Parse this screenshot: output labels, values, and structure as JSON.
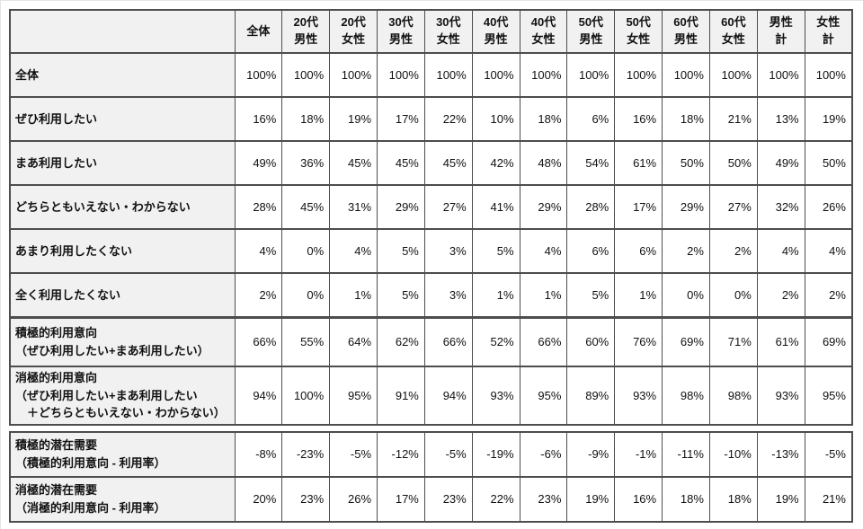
{
  "colors": {
    "table_border": "#4d4d4d",
    "header_bg": "#f1f1f1",
    "label_bg": "#f1f1f1",
    "cell_bg": "#ffffff",
    "text": "#111111"
  },
  "chart_data": {
    "type": "table",
    "title": "",
    "column_headers": [
      "",
      "全体",
      "20代\n男性",
      "20代\n女性",
      "30代\n男性",
      "30代\n女性",
      "40代\n男性",
      "40代\n女性",
      "50代\n男性",
      "50代\n女性",
      "60代\n男性",
      "60代\n女性",
      "男性\n計",
      "女性\n計"
    ],
    "body_rows": [
      {
        "label": "全体",
        "values": [
          "100%",
          "100%",
          "100%",
          "100%",
          "100%",
          "100%",
          "100%",
          "100%",
          "100%",
          "100%",
          "100%",
          "100%",
          "100%"
        ]
      },
      {
        "label": "ぜひ利用したい",
        "values": [
          "16%",
          "18%",
          "19%",
          "17%",
          "22%",
          "10%",
          "18%",
          "6%",
          "16%",
          "18%",
          "21%",
          "13%",
          "19%"
        ]
      },
      {
        "label": "まあ利用したい",
        "values": [
          "49%",
          "36%",
          "45%",
          "45%",
          "45%",
          "42%",
          "48%",
          "54%",
          "61%",
          "50%",
          "50%",
          "49%",
          "50%"
        ]
      },
      {
        "label": "どちらともいえない・わからない",
        "values": [
          "28%",
          "45%",
          "31%",
          "29%",
          "27%",
          "41%",
          "29%",
          "28%",
          "17%",
          "29%",
          "27%",
          "32%",
          "26%"
        ]
      },
      {
        "label": "あまり利用したくない",
        "values": [
          "4%",
          "0%",
          "4%",
          "5%",
          "3%",
          "5%",
          "4%",
          "6%",
          "6%",
          "2%",
          "2%",
          "4%",
          "4%"
        ]
      },
      {
        "label": "全く利用したくない",
        "values": [
          "2%",
          "0%",
          "1%",
          "5%",
          "3%",
          "1%",
          "1%",
          "5%",
          "1%",
          "0%",
          "0%",
          "2%",
          "2%"
        ]
      }
    ],
    "summary_rows": [
      {
        "label": "積極的利用意向\n（ぜひ利用したい+まあ利用したい）",
        "values": [
          "66%",
          "55%",
          "64%",
          "62%",
          "66%",
          "52%",
          "66%",
          "60%",
          "76%",
          "69%",
          "71%",
          "61%",
          "69%"
        ]
      },
      {
        "label": "消極的利用意向\n（ぜひ利用したい+まあ利用したい\n　＋どちらともいえない・わからない）",
        "values": [
          "94%",
          "100%",
          "95%",
          "91%",
          "94%",
          "93%",
          "95%",
          "89%",
          "93%",
          "98%",
          "98%",
          "93%",
          "95%"
        ]
      }
    ],
    "demand_rows": [
      {
        "label": "積極的潜在需要\n（積極的利用意向 - 利用率）",
        "values": [
          "-8%",
          "-23%",
          "-5%",
          "-12%",
          "-5%",
          "-19%",
          "-6%",
          "-9%",
          "-1%",
          "-11%",
          "-10%",
          "-13%",
          "-5%"
        ]
      },
      {
        "label": "消極的潜在需要\n（消極的利用意向 - 利用率）",
        "values": [
          "20%",
          "23%",
          "26%",
          "17%",
          "23%",
          "22%",
          "23%",
          "19%",
          "16%",
          "18%",
          "18%",
          "19%",
          "21%"
        ]
      }
    ]
  }
}
